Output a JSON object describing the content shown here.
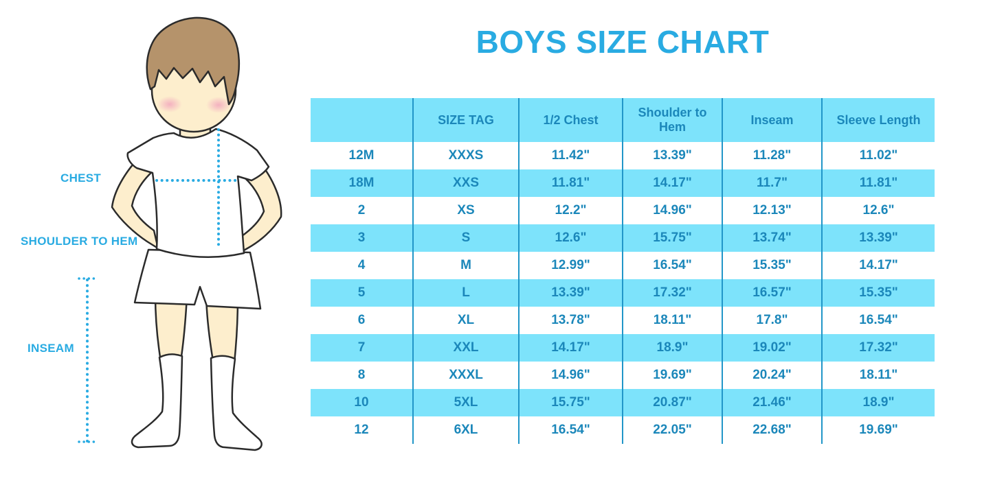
{
  "page": {
    "title": "BOYS SIZE CHART"
  },
  "figure": {
    "labels": {
      "chest": "CHEST",
      "shoulder_to_hem": "SHOULDER TO HEM",
      "inseam": "INSEAM"
    }
  },
  "colors": {
    "accent_blue": "#29abe2",
    "table_text_blue": "#1b87ba",
    "row_cyan": "#7de3fb",
    "grid_blue": "#2196c8",
    "skin": "#fdeecd",
    "hair": "#b5936b",
    "cheek_pink": "#f2a6bd",
    "outline": "#2b2b2b"
  },
  "chart_data": {
    "type": "table",
    "title": "BOYS SIZE CHART",
    "columns": [
      "",
      "SIZE TAG",
      "1/2 Chest",
      "Shoulder to Hem",
      "Inseam",
      "Sleeve Length"
    ],
    "rows": [
      [
        "12M",
        "XXXS",
        "11.42\"",
        "13.39\"",
        "11.28\"",
        "11.02\""
      ],
      [
        "18M",
        "XXS",
        "11.81\"",
        "14.17\"",
        "11.7\"",
        "11.81\""
      ],
      [
        "2",
        "XS",
        "12.2\"",
        "14.96\"",
        "12.13\"",
        "12.6\""
      ],
      [
        "3",
        "S",
        "12.6\"",
        "15.75\"",
        "13.74\"",
        "13.39\""
      ],
      [
        "4",
        "M",
        "12.99\"",
        "16.54\"",
        "15.35\"",
        "14.17\""
      ],
      [
        "5",
        "L",
        "13.39\"",
        "17.32\"",
        "16.57\"",
        "15.35\""
      ],
      [
        "6",
        "XL",
        "13.78\"",
        "18.11\"",
        "17.8\"",
        "16.54\""
      ],
      [
        "7",
        "XXL",
        "14.17\"",
        "18.9\"",
        "19.02\"",
        "17.32\""
      ],
      [
        "8",
        "XXXL",
        "14.96\"",
        "19.69\"",
        "20.24\"",
        "18.11\""
      ],
      [
        "10",
        "5XL",
        "15.75\"",
        "20.87\"",
        "21.46\"",
        "18.9\""
      ],
      [
        "12",
        "6XL",
        "16.54\"",
        "22.05\"",
        "22.68\"",
        "19.69\""
      ]
    ]
  }
}
